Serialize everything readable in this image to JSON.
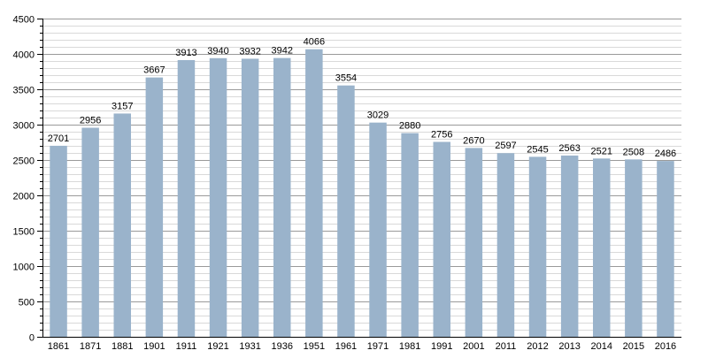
{
  "chart_data": {
    "type": "bar",
    "categories": [
      "1861",
      "1871",
      "1881",
      "1901",
      "1911",
      "1921",
      "1931",
      "1936",
      "1951",
      "1961",
      "1971",
      "1981",
      "1991",
      "2001",
      "2011",
      "2012",
      "2013",
      "2014",
      "2015",
      "2016"
    ],
    "values": [
      2701,
      2956,
      3157,
      3667,
      3913,
      3940,
      3932,
      3942,
      4066,
      3554,
      3029,
      2880,
      2756,
      2670,
      2597,
      2545,
      2563,
      2521,
      2508,
      2486
    ],
    "title": "",
    "xlabel": "",
    "ylabel": "",
    "ylim": [
      0,
      4500
    ],
    "yticks": [
      0,
      500,
      1000,
      1500,
      2000,
      2500,
      3000,
      3500,
      4000,
      4500
    ],
    "minor_tick_step": 100,
    "grid": true,
    "legend": "none",
    "data_labels": true,
    "colors": {
      "bar": "#9ab3cb",
      "major_grid": "#9a9a9a",
      "minor_grid": "#d9d9d9",
      "axis": "#000000",
      "text": "#000000"
    }
  }
}
